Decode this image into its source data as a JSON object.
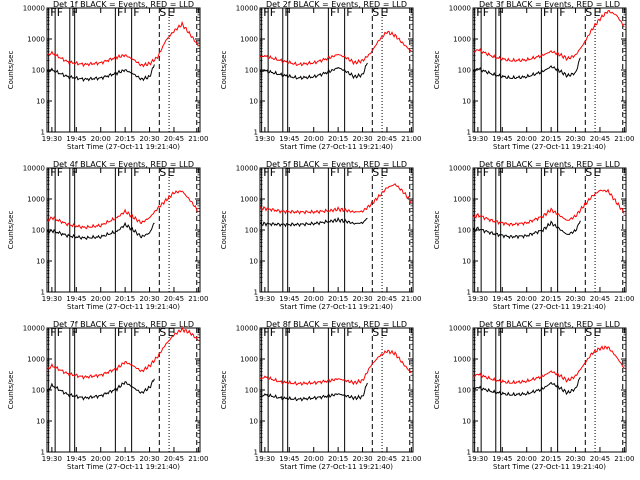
{
  "chart_data": [
    {
      "type": "line",
      "title": "Det 1f BLACK = Events, RED = LLD",
      "xlabel": "Start Time (27-Oct-11 19:21:40)",
      "ylabel": "Counts/sec",
      "y_scale": "log",
      "ylim": [
        1,
        10000
      ],
      "xlim_minutes": [
        18.5,
        21.2
      ],
      "x_tick_labels": [
        "19:30",
        "19:45",
        "20:00",
        "20:15",
        "20:30",
        "20:45",
        "21:00"
      ],
      "y_tick_labels": [
        "1",
        "10",
        "100",
        "1000",
        "10000"
      ],
      "markers": [
        "F",
        "F",
        "F",
        "F",
        "F",
        "S",
        "E"
      ],
      "series": [
        {
          "name": "LLD",
          "color": "#ff0000",
          "x": [
            "19:27",
            "19:30",
            "19:40",
            "19:50",
            "20:00",
            "20:10",
            "20:15",
            "20:20",
            "20:25",
            "20:30",
            "20:35",
            "20:40",
            "20:45",
            "20:50",
            "20:55",
            "21:00"
          ],
          "values": [
            300,
            350,
            180,
            150,
            170,
            260,
            300,
            220,
            140,
            160,
            260,
            900,
            1800,
            3000,
            1400,
            600
          ]
        },
        {
          "name": "Events",
          "color": "#000000",
          "x": [
            "19:27",
            "19:30",
            "19:40",
            "19:50",
            "20:00",
            "20:10",
            "20:15",
            "20:20",
            "20:25",
            "20:30",
            "20:33"
          ],
          "values": [
            90,
            100,
            60,
            50,
            55,
            80,
            100,
            75,
            50,
            60,
            150
          ]
        }
      ]
    },
    {
      "type": "line",
      "title": "Det 2f BLACK = Events, RED = LLD",
      "xlabel": "Start Time (27-Oct-11 19:21:40)",
      "ylabel": "Counts/sec",
      "y_scale": "log",
      "ylim": [
        1,
        10000
      ],
      "xlim_minutes": [
        18.5,
        21.2
      ],
      "x_tick_labels": [
        "19:30",
        "19:45",
        "20:00",
        "20:15",
        "20:30",
        "20:45",
        "21:00"
      ],
      "y_tick_labels": [
        "1",
        "10",
        "100",
        "1000",
        "10000"
      ],
      "markers": [
        "F",
        "F",
        "F",
        "F",
        "F",
        "S",
        "E"
      ],
      "series": [
        {
          "name": "LLD",
          "color": "#ff0000",
          "x": [
            "19:27",
            "19:30",
            "19:40",
            "19:50",
            "20:00",
            "20:10",
            "20:15",
            "20:20",
            "20:25",
            "20:30",
            "20:35",
            "20:40",
            "20:45",
            "20:50",
            "20:55",
            "21:00"
          ],
          "values": [
            270,
            280,
            200,
            150,
            170,
            250,
            320,
            250,
            170,
            200,
            350,
            900,
            1700,
            1300,
            700,
            400
          ]
        },
        {
          "name": "Events",
          "color": "#000000",
          "x": [
            "19:27",
            "19:30",
            "19:40",
            "19:50",
            "20:00",
            "20:10",
            "20:15",
            "20:20",
            "20:25",
            "20:30",
            "20:33"
          ],
          "values": [
            90,
            95,
            70,
            55,
            60,
            90,
            120,
            90,
            60,
            70,
            170
          ]
        }
      ]
    },
    {
      "type": "line",
      "title": "Det 3f BLACK = Events, RED = LLD",
      "xlabel": "Start Time (27-Oct-11 19:21:40)",
      "ylabel": "Counts/sec",
      "y_scale": "log",
      "ylim": [
        1,
        10000
      ],
      "xlim_minutes": [
        18.5,
        21.2
      ],
      "x_tick_labels": [
        "19:30",
        "19:45",
        "20:00",
        "20:15",
        "20:30",
        "20:45",
        "21:00"
      ],
      "y_tick_labels": [
        "1",
        "10",
        "100",
        "1000",
        "10000"
      ],
      "markers": [
        "F",
        "F",
        "F",
        "F",
        "F",
        "S",
        "E"
      ],
      "series": [
        {
          "name": "LLD",
          "color": "#ff0000",
          "x": [
            "19:27",
            "19:30",
            "19:40",
            "19:50",
            "20:00",
            "20:10",
            "20:15",
            "20:20",
            "20:25",
            "20:30",
            "20:35",
            "20:40",
            "20:45",
            "20:50",
            "20:55",
            "21:00"
          ],
          "values": [
            380,
            450,
            260,
            200,
            210,
            300,
            400,
            320,
            230,
            300,
            700,
            2000,
            4500,
            8000,
            6000,
            2500
          ]
        },
        {
          "name": "Events",
          "color": "#000000",
          "x": [
            "19:27",
            "19:30",
            "19:40",
            "19:50",
            "20:00",
            "20:10",
            "20:15",
            "20:20",
            "20:25",
            "20:30",
            "20:33"
          ],
          "values": [
            90,
            110,
            70,
            55,
            60,
            90,
            130,
            95,
            65,
            80,
            250
          ]
        }
      ]
    },
    {
      "type": "line",
      "title": "Det 4f BLACK = Events, RED = LLD",
      "xlabel": "Start Time (27-Oct-11 19:21:40)",
      "ylabel": "Counts/sec",
      "y_scale": "log",
      "ylim": [
        1,
        10000
      ],
      "xlim_minutes": [
        18.5,
        21.2
      ],
      "x_tick_labels": [
        "19:30",
        "19:45",
        "20:00",
        "20:15",
        "20:30",
        "20:45",
        "21:00"
      ],
      "y_tick_labels": [
        "1",
        "10",
        "100",
        "1000",
        "10000"
      ],
      "markers": [
        "F",
        "F",
        "F",
        "F",
        "F",
        "S",
        "E"
      ],
      "series": [
        {
          "name": "LLD",
          "color": "#ff0000",
          "x": [
            "19:27",
            "19:30",
            "19:40",
            "19:50",
            "20:00",
            "20:10",
            "20:15",
            "20:20",
            "20:25",
            "20:30",
            "20:35",
            "20:40",
            "20:45",
            "20:50",
            "20:55",
            "21:00"
          ],
          "values": [
            200,
            250,
            150,
            120,
            140,
            250,
            400,
            260,
            170,
            250,
            500,
            900,
            1600,
            1800,
            900,
            400
          ]
        },
        {
          "name": "Events",
          "color": "#000000",
          "x": [
            "19:27",
            "19:30",
            "19:40",
            "19:50",
            "20:00",
            "20:10",
            "20:15",
            "20:20",
            "20:25",
            "20:30",
            "20:33"
          ],
          "values": [
            85,
            95,
            65,
            55,
            60,
            90,
            150,
            100,
            60,
            80,
            170
          ]
        }
      ]
    },
    {
      "type": "line",
      "title": "Det 5f BLACK = Events, RED = LLD",
      "xlabel": "Start Time (27-Oct-11 19:21:40)",
      "ylabel": "Counts/sec",
      "y_scale": "log",
      "ylim": [
        1,
        10000
      ],
      "xlim_minutes": [
        18.5,
        21.2
      ],
      "x_tick_labels": [
        "19:30",
        "19:45",
        "20:00",
        "20:15",
        "20:30",
        "20:45",
        "21:00"
      ],
      "y_tick_labels": [
        "1",
        "10",
        "100",
        "1000",
        "10000"
      ],
      "markers": [
        "F",
        "F",
        "F",
        "F",
        "F",
        "S",
        "E"
      ],
      "series": [
        {
          "name": "LLD",
          "color": "#ff0000",
          "x": [
            "19:27",
            "19:30",
            "19:40",
            "19:50",
            "20:00",
            "20:10",
            "20:15",
            "20:20",
            "20:25",
            "20:30",
            "20:35",
            "20:40",
            "20:45",
            "20:50",
            "20:55",
            "21:00"
          ],
          "values": [
            480,
            500,
            400,
            380,
            380,
            420,
            470,
            430,
            380,
            400,
            650,
            1200,
            2300,
            3000,
            1700,
            800
          ]
        },
        {
          "name": "Events",
          "color": "#000000",
          "x": [
            "19:27",
            "19:30",
            "19:40",
            "19:50",
            "20:00",
            "20:10",
            "20:15",
            "20:20",
            "20:25",
            "20:30",
            "20:33"
          ],
          "values": [
            150,
            160,
            150,
            150,
            160,
            190,
            210,
            190,
            160,
            170,
            240
          ]
        }
      ]
    },
    {
      "type": "line",
      "title": "Det 6f BLACK = Events, RED = LLD",
      "xlabel": "Start Time (27-Oct-11 19:21:40)",
      "ylabel": "Counts/sec",
      "y_scale": "log",
      "ylim": [
        1,
        10000
      ],
      "xlim_minutes": [
        18.5,
        21.2
      ],
      "x_tick_labels": [
        "19:30",
        "19:45",
        "20:00",
        "20:15",
        "20:30",
        "20:45",
        "21:00"
      ],
      "y_tick_labels": [
        "1",
        "10",
        "100",
        "1000",
        "10000"
      ],
      "markers": [
        "F",
        "F",
        "F",
        "F",
        "F",
        "S",
        "E"
      ],
      "series": [
        {
          "name": "LLD",
          "color": "#ff0000",
          "x": [
            "19:27",
            "19:30",
            "19:40",
            "19:50",
            "20:00",
            "20:10",
            "20:15",
            "20:20",
            "20:25",
            "20:30",
            "20:35",
            "20:40",
            "20:45",
            "20:50",
            "20:55",
            "21:00"
          ],
          "values": [
            250,
            300,
            190,
            150,
            170,
            280,
            450,
            300,
            200,
            280,
            600,
            1200,
            1900,
            1800,
            800,
            350
          ]
        },
        {
          "name": "Events",
          "color": "#000000",
          "x": [
            "19:27",
            "19:30",
            "19:40",
            "19:50",
            "20:00",
            "20:10",
            "20:15",
            "20:20",
            "20:25",
            "20:30",
            "20:33"
          ],
          "values": [
            100,
            110,
            75,
            60,
            65,
            100,
            170,
            110,
            70,
            95,
            200
          ]
        }
      ]
    },
    {
      "type": "line",
      "title": "Det 7f BLACK = Events, RED = LLD",
      "xlabel": "Start Time (27-Oct-11 19:21:40)",
      "ylabel": "Counts/sec",
      "y_scale": "log",
      "ylim": [
        1,
        10000
      ],
      "xlim_minutes": [
        18.5,
        21.2
      ],
      "x_tick_labels": [
        "19:30",
        "19:45",
        "20:00",
        "20:15",
        "20:30",
        "20:45",
        "21:00"
      ],
      "y_tick_labels": [
        "1",
        "10",
        "100",
        "1000",
        "10000"
      ],
      "markers": [
        "F",
        "F",
        "F",
        "F",
        "F",
        "S",
        "E"
      ],
      "series": [
        {
          "name": "LLD",
          "color": "#ff0000",
          "x": [
            "19:27",
            "19:30",
            "19:40",
            "19:50",
            "20:00",
            "20:10",
            "20:15",
            "20:20",
            "20:25",
            "20:30",
            "20:35",
            "20:40",
            "20:45",
            "20:50",
            "20:55",
            "21:00"
          ],
          "values": [
            450,
            600,
            330,
            260,
            300,
            500,
            800,
            600,
            400,
            600,
            1200,
            3000,
            6000,
            9000,
            7000,
            4000
          ]
        },
        {
          "name": "Events",
          "color": "#000000",
          "x": [
            "19:27",
            "19:30",
            "19:40",
            "19:50",
            "20:00",
            "20:10",
            "20:15",
            "20:20",
            "20:25",
            "20:30",
            "20:33"
          ],
          "values": [
            90,
            140,
            70,
            55,
            65,
            110,
            180,
            120,
            80,
            120,
            230
          ]
        }
      ]
    },
    {
      "type": "line",
      "title": "Det 8f BLACK = Events, RED = LLD",
      "xlabel": "Start Time (27-Oct-11 19:21:40)",
      "ylabel": "Counts/sec",
      "y_scale": "log",
      "ylim": [
        1,
        10000
      ],
      "xlim_minutes": [
        18.5,
        21.2
      ],
      "x_tick_labels": [
        "19:30",
        "19:45",
        "20:00",
        "20:15",
        "20:30",
        "20:45",
        "21:00"
      ],
      "y_tick_labels": [
        "1",
        "10",
        "100",
        "1000",
        "10000"
      ],
      "markers": [
        "F",
        "F",
        "F",
        "F",
        "F",
        "S",
        "E"
      ],
      "series": [
        {
          "name": "LLD",
          "color": "#ff0000",
          "x": [
            "19:27",
            "19:30",
            "19:40",
            "19:50",
            "20:00",
            "20:10",
            "20:15",
            "20:20",
            "20:25",
            "20:30",
            "20:35",
            "20:40",
            "20:45",
            "20:50",
            "20:55",
            "21:00"
          ],
          "values": [
            230,
            260,
            180,
            160,
            170,
            200,
            230,
            200,
            170,
            200,
            600,
            1200,
            1800,
            1500,
            700,
            350
          ]
        },
        {
          "name": "Events",
          "color": "#000000",
          "x": [
            "19:27",
            "19:30",
            "19:40",
            "19:50",
            "20:00",
            "20:10",
            "20:15",
            "20:20",
            "20:25",
            "20:30",
            "20:33"
          ],
          "values": [
            60,
            70,
            55,
            50,
            55,
            65,
            75,
            65,
            55,
            60,
            170
          ]
        }
      ]
    },
    {
      "type": "line",
      "title": "Det 9f BLACK = Events, RED = LLD",
      "xlabel": "Start Time (27-Oct-11 19:21:40)",
      "ylabel": "Counts/sec",
      "y_scale": "log",
      "ylim": [
        1,
        10000
      ],
      "xlim_minutes": [
        18.5,
        21.2
      ],
      "x_tick_labels": [
        "19:30",
        "19:45",
        "20:00",
        "20:15",
        "20:30",
        "20:45",
        "21:00"
      ],
      "y_tick_labels": [
        "1",
        "10",
        "100",
        "1000",
        "10000"
      ],
      "markers": [
        "F",
        "F",
        "F",
        "F",
        "F",
        "S",
        "E"
      ],
      "series": [
        {
          "name": "LLD",
          "color": "#ff0000",
          "x": [
            "19:27",
            "19:30",
            "19:40",
            "19:50",
            "20:00",
            "20:10",
            "20:15",
            "20:20",
            "20:25",
            "20:30",
            "20:35",
            "20:40",
            "20:45",
            "20:50",
            "20:55",
            "21:00"
          ],
          "values": [
            280,
            320,
            210,
            170,
            190,
            280,
            400,
            300,
            200,
            280,
            650,
            1500,
            2200,
            2400,
            1200,
            500
          ]
        },
        {
          "name": "Events",
          "color": "#000000",
          "x": [
            "19:27",
            "19:30",
            "19:40",
            "19:50",
            "20:00",
            "20:10",
            "20:15",
            "20:20",
            "20:25",
            "20:30",
            "20:33"
          ],
          "values": [
            110,
            120,
            85,
            70,
            75,
            110,
            170,
            120,
            80,
            110,
            260
          ]
        }
      ]
    }
  ]
}
